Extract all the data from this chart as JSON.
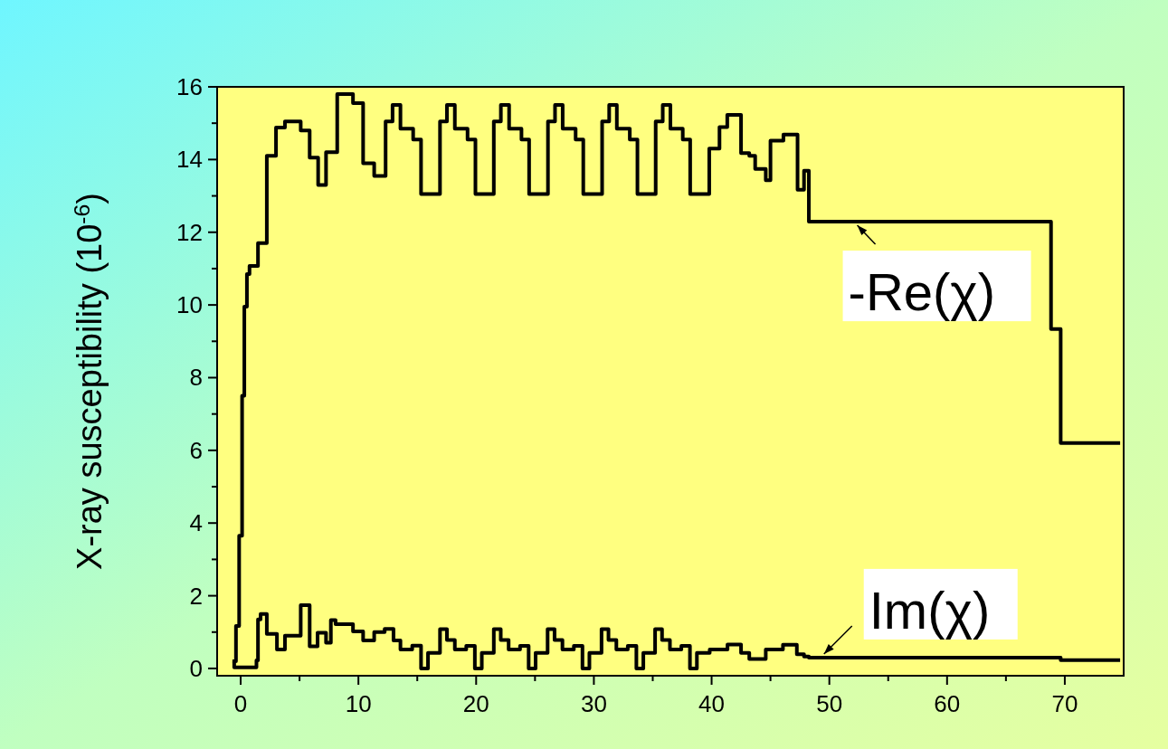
{
  "chart_data": {
    "type": "step",
    "ylabel": "X-ray susceptibility  (10$^{-6}$)",
    "xlim": [
      -2,
      75
    ],
    "xticks": [
      0,
      {
        "value": 5,
        "label": null
      },
      10,
      {
        "value": 15,
        "label": null
      },
      20,
      {
        "value": 25,
        "label": null
      },
      30,
      {
        "value": 35,
        "label": null
      },
      40,
      {
        "value": 45,
        "label": null
      },
      50,
      {
        "value": 55,
        "label": null
      },
      60,
      {
        "value": 65,
        "label": null
      },
      70
    ],
    "ylim": [
      -0.2,
      16
    ],
    "yticks": [
      0,
      {
        "value": 1,
        "label": null
      },
      2,
      {
        "value": 3,
        "label": null
      },
      4,
      {
        "value": 5,
        "label": null
      },
      6,
      {
        "value": 7,
        "label": null
      },
      8,
      {
        "value": 9,
        "label": null
      },
      10,
      {
        "value": 11,
        "label": null
      },
      12,
      {
        "value": 13,
        "label": null
      },
      14,
      {
        "value": 15,
        "label": null
      },
      16
    ],
    "grid": false,
    "line_style": "solid",
    "marker": "none",
    "series": [
      {
        "name": "-Re(χ)",
        "color": "#000000",
        "x": [
          -0.7,
          -0.4,
          -0.13,
          0.12,
          0.31,
          0.53,
          0.75,
          1.47,
          2.22,
          3.0,
          3.76,
          5.1,
          5.86,
          6.58,
          7.25,
          8.2,
          9.54,
          10.4,
          11.34,
          12.31,
          12.9,
          13.57,
          14.65,
          15.32,
          16.93,
          17.52,
          18.19,
          19.27,
          19.94,
          21.5,
          22.1,
          22.8,
          23.85,
          24.5,
          26.1,
          26.7,
          27.35,
          28.45,
          29.1,
          30.7,
          31.3,
          31.95,
          33.05,
          33.7,
          35.25,
          35.85,
          36.5,
          37.55,
          38.18,
          39.8,
          40.67,
          41.33,
          42.5,
          43.2,
          43.7,
          44.6,
          45.0,
          46.1,
          47.3,
          47.85,
          48.26,
          68.83,
          69.65,
          74.7
        ],
        "values": [
          0.2,
          1.17,
          3.65,
          7.5,
          9.95,
          10.85,
          11.07,
          11.7,
          14.1,
          14.88,
          15.05,
          14.8,
          14.05,
          13.3,
          14.2,
          15.8,
          15.55,
          13.9,
          13.55,
          15.05,
          15.5,
          14.85,
          14.55,
          13.05,
          15.05,
          15.5,
          14.85,
          14.55,
          13.05,
          15.05,
          15.5,
          14.85,
          14.55,
          13.05,
          15.05,
          15.5,
          14.85,
          14.55,
          13.05,
          15.05,
          15.5,
          14.85,
          14.55,
          13.05,
          15.05,
          15.5,
          14.85,
          14.55,
          13.05,
          14.3,
          14.89,
          15.23,
          14.18,
          14.1,
          13.74,
          13.43,
          14.52,
          14.69,
          13.17,
          13.69,
          12.29,
          9.34,
          6.2,
          6.2
        ]
      },
      {
        "name": "Im(χ)",
        "color": "#000000",
        "x": [
          -0.7,
          -0.55,
          1.34,
          1.47,
          1.69,
          2.22,
          3.08,
          3.76,
          5.1,
          5.86,
          6.53,
          7.25,
          7.66,
          8.06,
          9.54,
          10.4,
          11.34,
          12.23,
          12.98,
          13.57,
          14.57,
          15.32,
          15.91,
          16.93,
          17.52,
          18.19,
          19.16,
          19.89,
          20.48,
          21.5,
          22.09,
          22.76,
          23.73,
          24.46,
          25.05,
          26.07,
          26.66,
          27.33,
          28.3,
          29.03,
          29.62,
          30.65,
          31.24,
          31.91,
          32.88,
          33.61,
          34.2,
          35.2,
          35.79,
          36.46,
          37.43,
          38.16,
          38.75,
          39.84,
          41.35,
          42.5,
          43.2,
          44.6,
          46.06,
          47.24,
          47.85,
          48.26,
          69.65,
          74.7
        ],
        "values": [
          0.17,
          0.03,
          0.22,
          1.35,
          1.5,
          0.95,
          0.52,
          0.9,
          1.74,
          0.61,
          0.98,
          0.71,
          1.33,
          1.22,
          1.02,
          0.77,
          1.0,
          1.09,
          0.77,
          0.52,
          0.63,
          0,
          0.43,
          1.08,
          0.78,
          0.52,
          0.62,
          0,
          0.43,
          1.08,
          0.78,
          0.52,
          0.62,
          0,
          0.43,
          1.08,
          0.78,
          0.52,
          0.62,
          0,
          0.43,
          1.08,
          0.78,
          0.52,
          0.62,
          0,
          0.43,
          1.08,
          0.78,
          0.52,
          0.62,
          0,
          0.43,
          0.52,
          0.66,
          0.43,
          0.26,
          0.52,
          0.65,
          0.39,
          0.33,
          0.3,
          0.23,
          0.23
        ]
      }
    ]
  }
}
